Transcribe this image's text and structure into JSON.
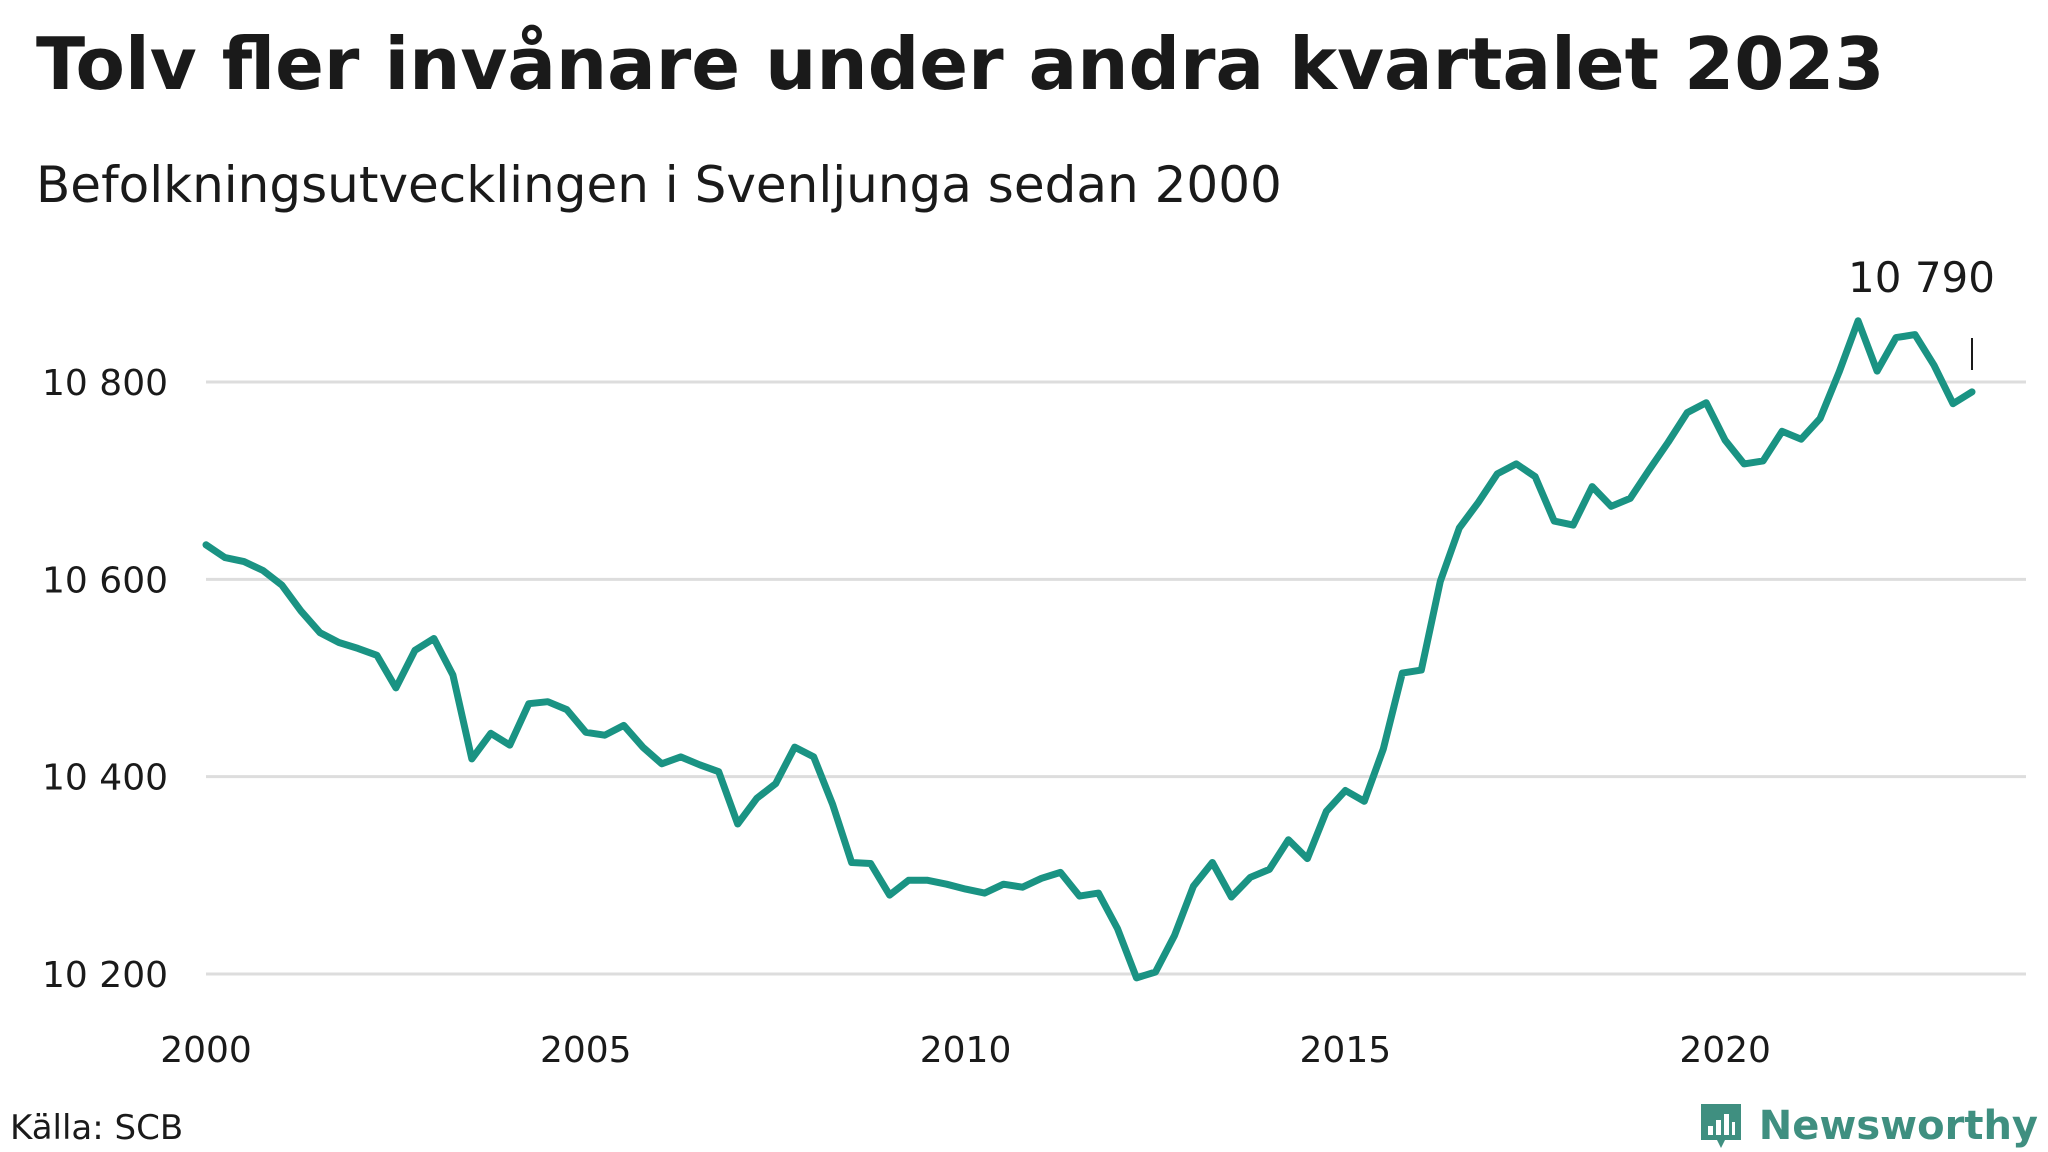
{
  "header": {
    "title": "Tolv fler invånare under andra kvartalet 2023",
    "subtitle": "Befolkningsutvecklingen i Svenljunga sedan 2000"
  },
  "footer": {
    "source": "Källa: SCB",
    "brand": "Newsworthy",
    "brand_icon": "bar-chart-icon"
  },
  "colors": {
    "line": "#1a9383",
    "grid": "#dddddd",
    "text": "#1a1a1a",
    "brand": "#3f8f80"
  },
  "chart_data": {
    "type": "line",
    "title": "Tolv fler invånare under andra kvartalet 2023",
    "subtitle": "Befolkningsutvecklingen i Svenljunga sedan 2000",
    "xlabel": "",
    "ylabel": "",
    "xlim": [
      2000,
      2024.3
    ],
    "ylim": [
      10180,
      10830
    ],
    "grid": true,
    "legend": "none",
    "x_ticks": [
      2000,
      2005,
      2010,
      2015,
      2020
    ],
    "x_tick_labels": [
      "2000",
      "2005",
      "2010",
      "2015",
      "2020"
    ],
    "y_ticks": [
      10200,
      10400,
      10600,
      10800
    ],
    "y_tick_labels": [
      "10 200",
      "10 400",
      "10 600",
      "10 800"
    ],
    "annotation": {
      "text": "10 790",
      "x": 2023.5,
      "y": 10790
    },
    "series": [
      {
        "values": [
          [
            2000.0,
            10635
          ],
          [
            2000.25,
            10622
          ],
          [
            2000.5,
            10618
          ],
          [
            2000.75,
            10609
          ],
          [
            2001.0,
            10594
          ],
          [
            2001.25,
            10568
          ],
          [
            2001.5,
            10546
          ],
          [
            2001.75,
            10536
          ],
          [
            2002.0,
            10530
          ],
          [
            2002.25,
            10523
          ],
          [
            2002.5,
            10490
          ],
          [
            2002.75,
            10528
          ],
          [
            2003.0,
            10540
          ],
          [
            2003.25,
            10503
          ],
          [
            2003.5,
            10418
          ],
          [
            2003.75,
            10444
          ],
          [
            2004.0,
            10432
          ],
          [
            2004.25,
            10474
          ],
          [
            2004.5,
            10476
          ],
          [
            2004.75,
            10468
          ],
          [
            2005.0,
            10445
          ],
          [
            2005.25,
            10442
          ],
          [
            2005.5,
            10452
          ],
          [
            2005.75,
            10430
          ],
          [
            2006.0,
            10413
          ],
          [
            2006.25,
            10420
          ],
          [
            2006.5,
            10412
          ],
          [
            2006.75,
            10405
          ],
          [
            2007.0,
            10352
          ],
          [
            2007.25,
            10378
          ],
          [
            2007.5,
            10393
          ],
          [
            2007.75,
            10430
          ],
          [
            2008.0,
            10420
          ],
          [
            2008.25,
            10372
          ],
          [
            2008.5,
            10313
          ],
          [
            2008.75,
            10312
          ],
          [
            2009.0,
            10280
          ],
          [
            2009.25,
            10295
          ],
          [
            2009.5,
            10295
          ],
          [
            2009.75,
            10291
          ],
          [
            2010.0,
            10286
          ],
          [
            2010.25,
            10282
          ],
          [
            2010.5,
            10291
          ],
          [
            2010.75,
            10288
          ],
          [
            2011.0,
            10297
          ],
          [
            2011.25,
            10303
          ],
          [
            2011.5,
            10279
          ],
          [
            2011.75,
            10282
          ],
          [
            2012.0,
            10246
          ],
          [
            2012.25,
            10196
          ],
          [
            2012.5,
            10202
          ],
          [
            2012.75,
            10239
          ],
          [
            2013.0,
            10289
          ],
          [
            2013.25,
            10313
          ],
          [
            2013.5,
            10278
          ],
          [
            2013.75,
            10298
          ],
          [
            2014.0,
            10306
          ],
          [
            2014.25,
            10336
          ],
          [
            2014.5,
            10317
          ],
          [
            2014.75,
            10365
          ],
          [
            2015.0,
            10386
          ],
          [
            2015.25,
            10375
          ],
          [
            2015.5,
            10428
          ],
          [
            2015.75,
            10505
          ],
          [
            2016.0,
            10508
          ],
          [
            2016.25,
            10598
          ],
          [
            2016.5,
            10652
          ],
          [
            2016.75,
            10678
          ],
          [
            2017.0,
            10707
          ],
          [
            2017.25,
            10717
          ],
          [
            2017.5,
            10704
          ],
          [
            2017.75,
            10659
          ],
          [
            2018.0,
            10655
          ],
          [
            2018.25,
            10694
          ],
          [
            2018.5,
            10674
          ],
          [
            2018.75,
            10682
          ],
          [
            2019.0,
            10711
          ],
          [
            2019.25,
            10739
          ],
          [
            2019.5,
            10769
          ],
          [
            2019.75,
            10779
          ],
          [
            2020.0,
            10741
          ],
          [
            2020.25,
            10717
          ],
          [
            2020.5,
            10720
          ],
          [
            2020.75,
            10750
          ],
          [
            2021.0,
            10742
          ],
          [
            2021.25,
            10763
          ],
          [
            2021.5,
            10810
          ],
          [
            2021.75,
            10862
          ],
          [
            2022.0,
            10811
          ],
          [
            2022.25,
            10845
          ],
          [
            2022.5,
            10848
          ],
          [
            2022.75,
            10817
          ],
          [
            2023.0,
            10778
          ],
          [
            2023.25,
            10790
          ]
        ]
      }
    ]
  }
}
